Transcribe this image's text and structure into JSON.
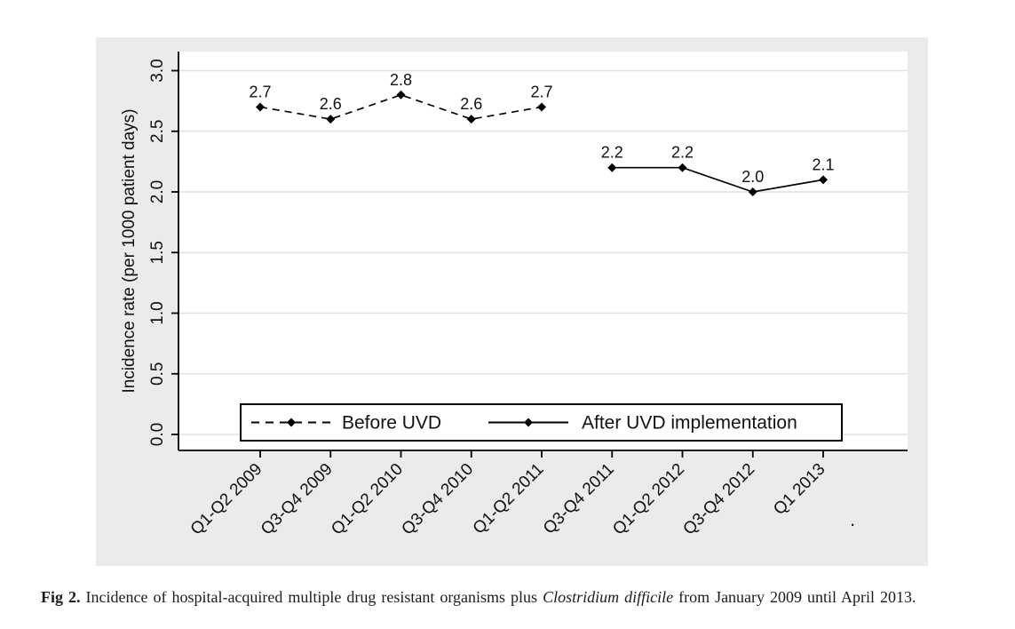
{
  "figure": {
    "stray_mark": "."
  },
  "caption": {
    "label": "Fig 2.",
    "before_italic": "Incidence of hospital-acquired multiple drug resistant organisms plus",
    "italic": "Clostridium difficile",
    "after_italic": "from January 2009 until April 2013."
  },
  "colors": {
    "figure_background": "#ebebeb",
    "plot_background": "#ffffff",
    "gridline": "#e2e2e2",
    "axis_and_series": "#000000",
    "text": "#111111"
  },
  "chart_data": {
    "type": "line",
    "title": "",
    "xlabel": "",
    "ylabel": "Incidence rate (per 1000 patient days)",
    "ylim": [
      0,
      3
    ],
    "ytick_interval": 0.5,
    "ytick_labels": [
      "0.0",
      "0.5",
      "1.0",
      "1.5",
      "2.0",
      "2.5",
      "3.0"
    ],
    "grid": true,
    "grid_orientation": "horizontal",
    "legend_position": "bottom-inside",
    "point_labels_visible": true,
    "categories": [
      "Q1-Q2 2009",
      "Q3-Q4 2009",
      "Q1-Q2 2010",
      "Q3-Q4 2010",
      "Q1-Q2 2011",
      "Q3-Q4 2011",
      "Q1-Q2 2012",
      "Q3-Q4 2012",
      "Q1 2013"
    ],
    "series": [
      {
        "name": "Before UVD",
        "line_style": "dashed",
        "marker": "diamond",
        "values": [
          2.7,
          2.6,
          2.8,
          2.6,
          2.7,
          null,
          null,
          null,
          null
        ]
      },
      {
        "name": "After UVD implementation",
        "line_style": "solid",
        "marker": "diamond",
        "values": [
          null,
          null,
          null,
          null,
          null,
          2.2,
          2.2,
          2.0,
          2.1
        ]
      }
    ]
  }
}
